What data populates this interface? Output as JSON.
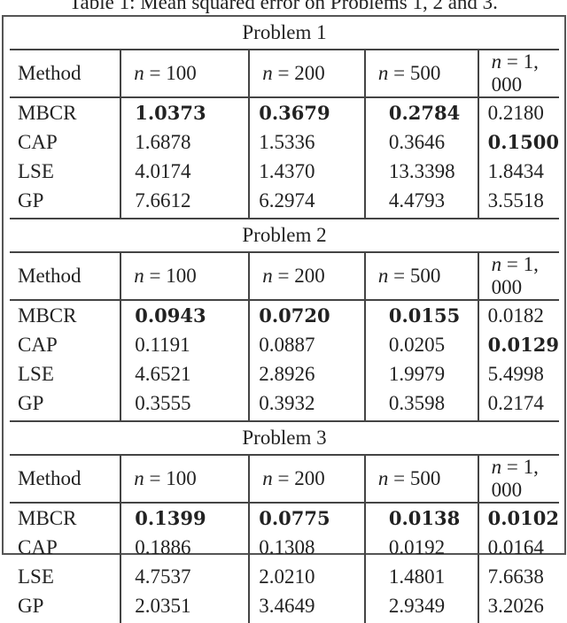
{
  "caption": "Table 1: Mean squared error on Problems 1, 2 and 3.",
  "header": {
    "method": "Method",
    "n_var": "n",
    "eq": " = ",
    "sizes": [
      "100",
      "200",
      "500",
      "1, 000"
    ]
  },
  "problems": [
    {
      "title": "Problem 1",
      "rows": [
        {
          "method": "MBCR",
          "values": [
            "1.0373",
            "0.3679",
            "0.2784",
            "0.2180"
          ],
          "bold": [
            true,
            true,
            true,
            false
          ]
        },
        {
          "method": "CAP",
          "values": [
            "1.6878",
            "1.5336",
            "0.3646",
            "0.1500"
          ],
          "bold": [
            false,
            false,
            false,
            true
          ]
        },
        {
          "method": "LSE",
          "values": [
            "4.0174",
            "1.4370",
            "13.3398",
            "1.8434"
          ],
          "bold": [
            false,
            false,
            false,
            false
          ]
        },
        {
          "method": "GP",
          "values": [
            "7.6612",
            "6.2974",
            "4.4793",
            "3.5518"
          ],
          "bold": [
            false,
            false,
            false,
            false
          ]
        }
      ]
    },
    {
      "title": "Problem 2",
      "rows": [
        {
          "method": "MBCR",
          "values": [
            "0.0943",
            "0.0720",
            "0.0155",
            "0.0182"
          ],
          "bold": [
            true,
            true,
            true,
            false
          ]
        },
        {
          "method": "CAP",
          "values": [
            "0.1191",
            "0.0887",
            "0.0205",
            "0.0129"
          ],
          "bold": [
            false,
            false,
            false,
            true
          ]
        },
        {
          "method": "LSE",
          "values": [
            "4.6521",
            "2.8926",
            "1.9979",
            "5.4998"
          ],
          "bold": [
            false,
            false,
            false,
            false
          ]
        },
        {
          "method": "GP",
          "values": [
            "0.3555",
            "0.3932",
            "0.3598",
            "0.2174"
          ],
          "bold": [
            false,
            false,
            false,
            false
          ]
        }
      ]
    },
    {
      "title": "Problem 3",
      "rows": [
        {
          "method": "MBCR",
          "values": [
            "0.1399",
            "0.0775",
            "0.0138",
            "0.0102"
          ],
          "bold": [
            true,
            true,
            true,
            true
          ]
        },
        {
          "method": "CAP",
          "values": [
            "0.1886",
            "0.1308",
            "0.0192",
            "0.0164"
          ],
          "bold": [
            false,
            false,
            false,
            false
          ]
        },
        {
          "method": "LSE",
          "values": [
            "4.7537",
            "2.0210",
            "1.4801",
            "7.6638"
          ],
          "bold": [
            false,
            false,
            false,
            false
          ]
        },
        {
          "method": "GP",
          "values": [
            "2.0351",
            "3.4649",
            "2.9349",
            "3.2026"
          ],
          "bold": [
            false,
            false,
            false,
            false
          ]
        }
      ]
    }
  ]
}
